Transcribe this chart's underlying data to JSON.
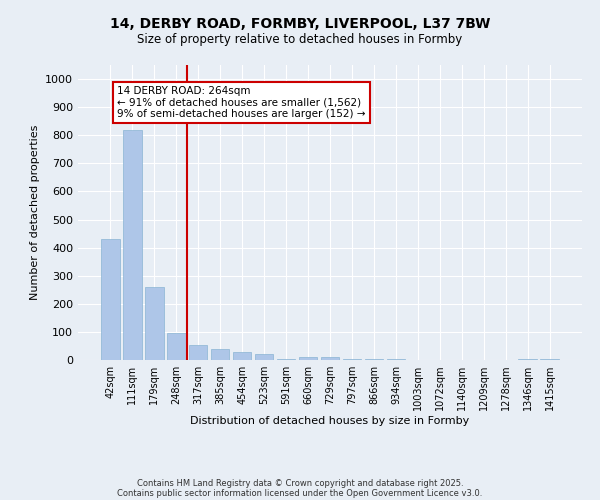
{
  "title_line1": "14, DERBY ROAD, FORMBY, LIVERPOOL, L37 7BW",
  "title_line2": "Size of property relative to detached houses in Formby",
  "xlabel": "Distribution of detached houses by size in Formby",
  "ylabel": "Number of detached properties",
  "categories": [
    "42sqm",
    "111sqm",
    "179sqm",
    "248sqm",
    "317sqm",
    "385sqm",
    "454sqm",
    "523sqm",
    "591sqm",
    "660sqm",
    "729sqm",
    "797sqm",
    "866sqm",
    "934sqm",
    "1003sqm",
    "1072sqm",
    "1140sqm",
    "1209sqm",
    "1278sqm",
    "1346sqm",
    "1415sqm"
  ],
  "values": [
    430,
    820,
    260,
    95,
    55,
    40,
    30,
    20,
    5,
    10,
    10,
    2,
    2,
    2,
    0,
    0,
    0,
    0,
    0,
    2,
    2
  ],
  "bar_color": "#aec6e8",
  "bar_edgecolor": "#8ab4d4",
  "vline_x": 3.5,
  "vline_color": "#cc0000",
  "annotation_title": "14 DERBY ROAD: 264sqm",
  "annotation_line1": "← 91% of detached houses are smaller (1,562)",
  "annotation_line2": "9% of semi-detached houses are larger (152) →",
  "annotation_box_edgecolor": "#cc0000",
  "annotation_box_facecolor": "#ffffff",
  "ylim": [
    0,
    1050
  ],
  "yticks": [
    0,
    100,
    200,
    300,
    400,
    500,
    600,
    700,
    800,
    900,
    1000
  ],
  "background_color": "#e8eef5",
  "plot_bg_color": "#e8eef5",
  "footer_line1": "Contains HM Land Registry data © Crown copyright and database right 2025.",
  "footer_line2": "Contains public sector information licensed under the Open Government Licence v3.0."
}
